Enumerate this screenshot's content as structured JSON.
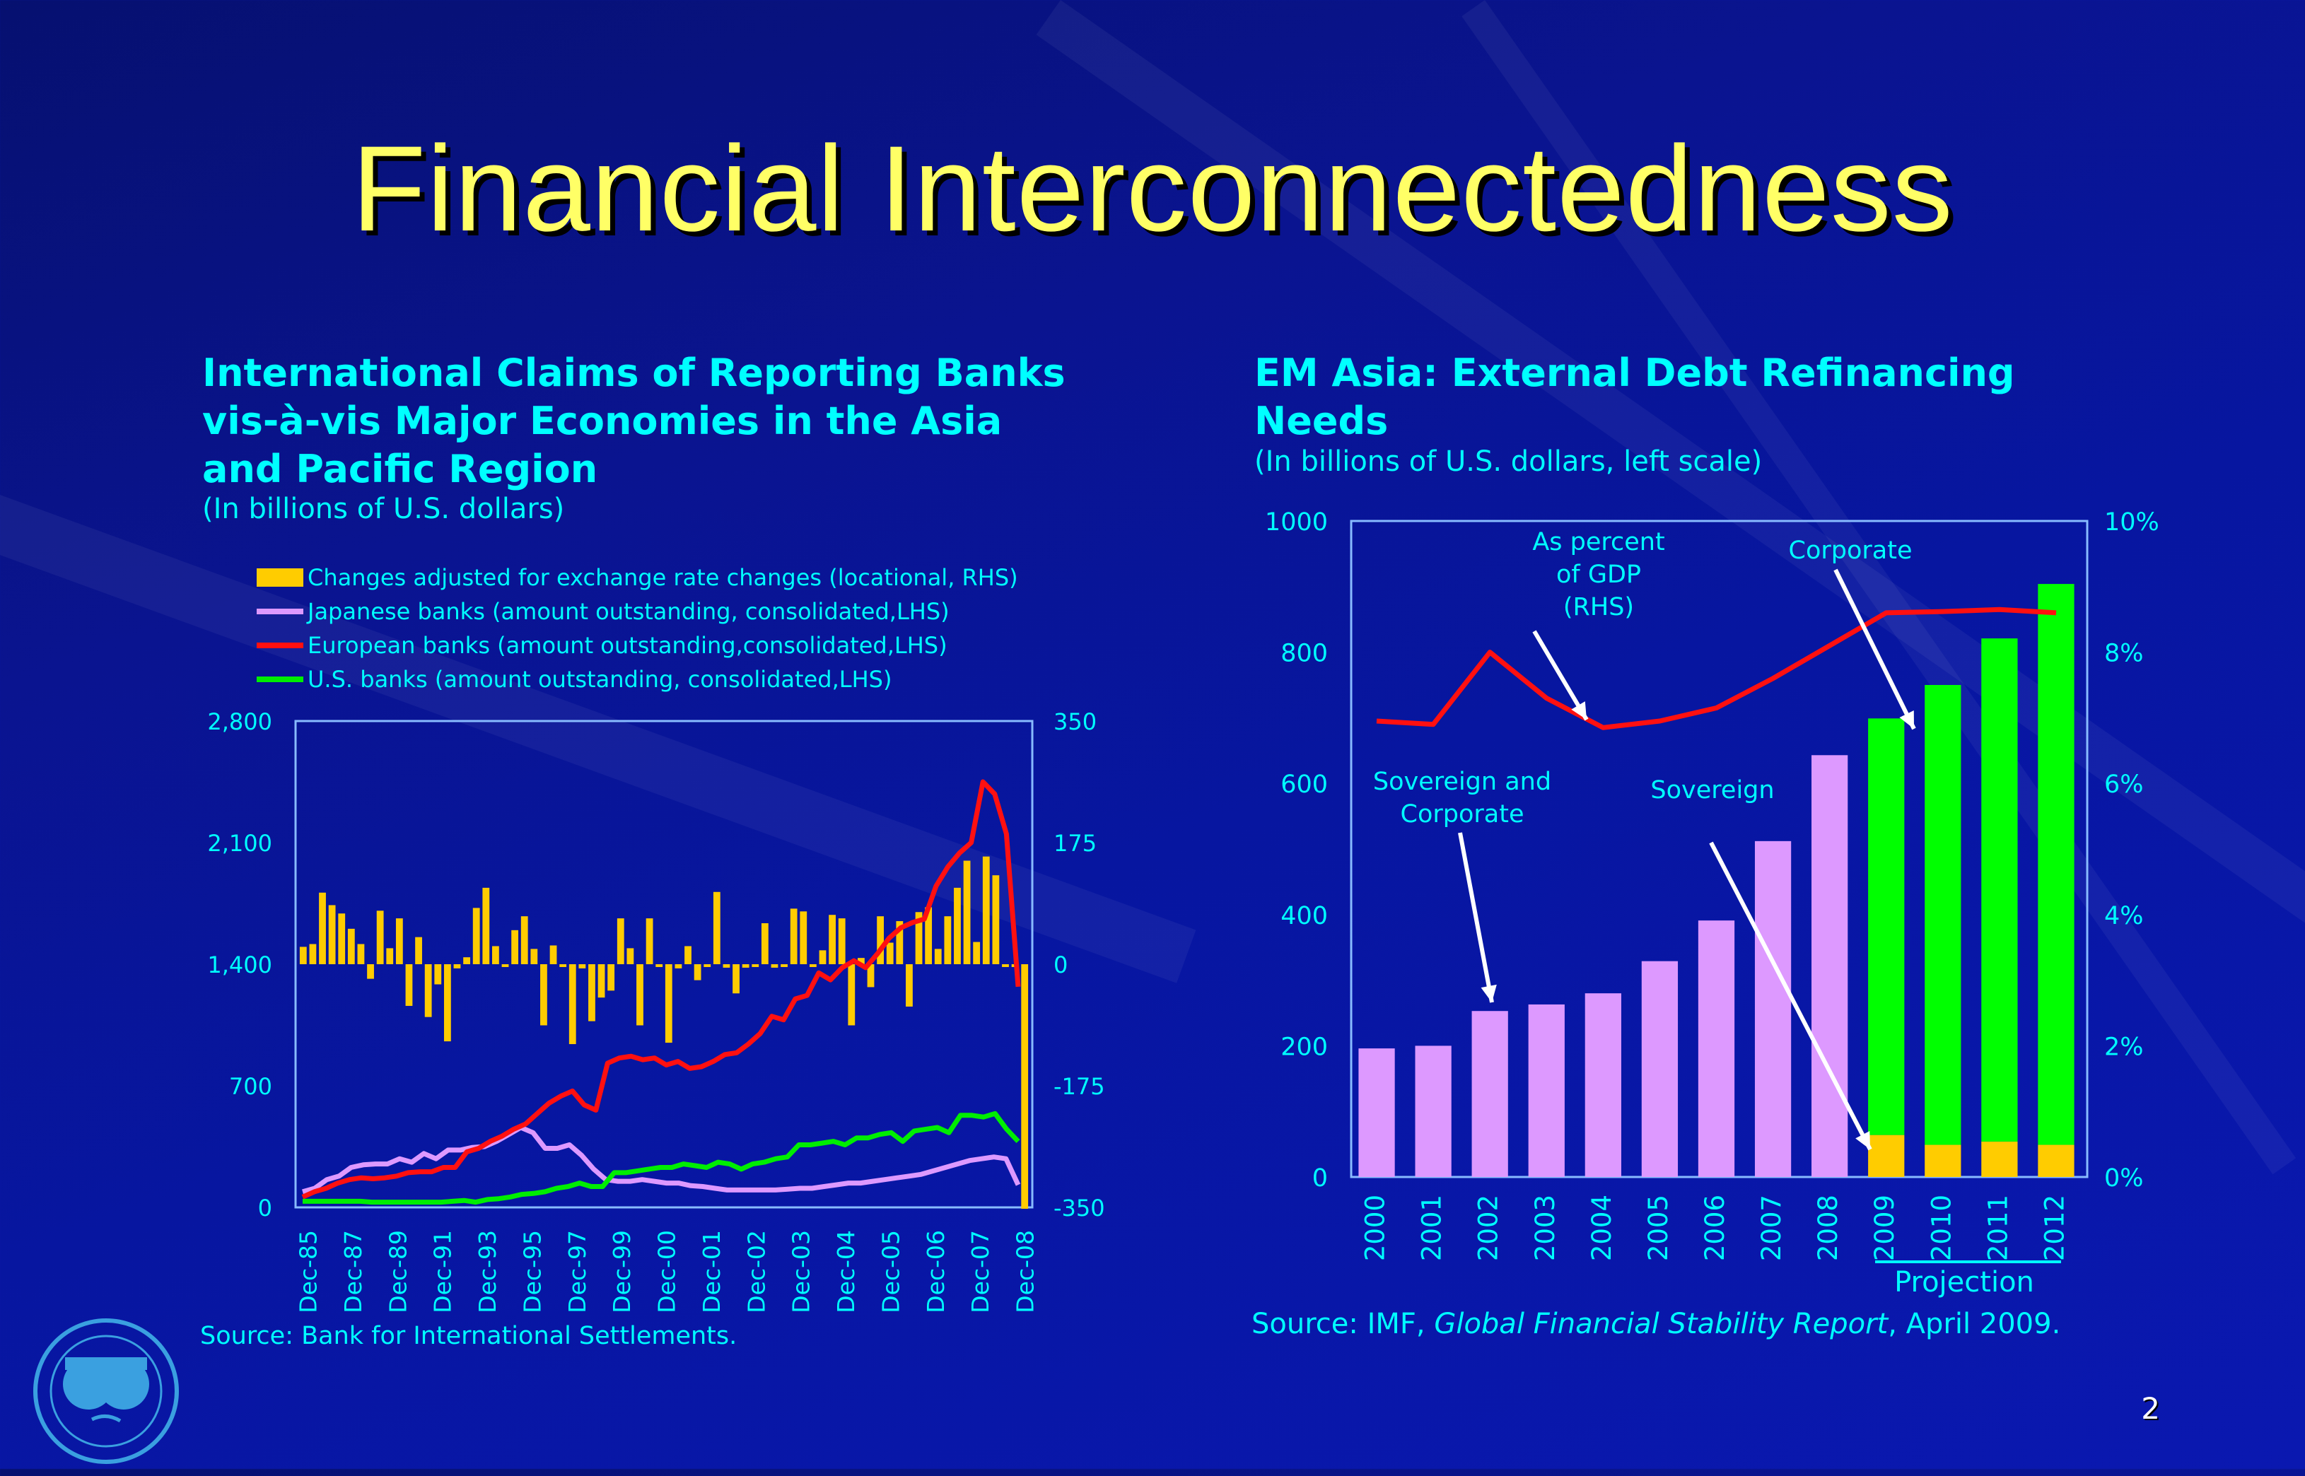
{
  "slide": {
    "title": "Financial Interconnectedness",
    "page_number": "2"
  },
  "left_panel": {
    "title_lines": [
      "International Claims of Reporting Banks",
      "vis-à-vis Major Economies in the Asia",
      "and Pacific Region"
    ],
    "subtitle": "(In billions of U.S. dollars)",
    "legend": [
      {
        "label": "Changes adjusted for exchange rate changes (locational, RHS)",
        "color": "#ffcc00",
        "kind": "box"
      },
      {
        "label": "Japanese banks (amount outstanding, consolidated,LHS)",
        "color": "#dd99ff",
        "kind": "line"
      },
      {
        "label": "European banks (amount outstanding,consolidated,LHS)",
        "color": "#ff1010",
        "kind": "line"
      },
      {
        "label": "U.S. banks (amount outstanding, consolidated,LHS)",
        "color": "#00ee00",
        "kind": "line"
      }
    ],
    "source": "Source: Bank for International Settlements."
  },
  "right_panel": {
    "title_lines": [
      "EM Asia: External Debt Refinancing",
      "Needs"
    ],
    "subtitle": "(In billions of U.S. dollars, left scale)",
    "annotations": {
      "gdp": [
        "As percent",
        "of GDP",
        "(RHS)"
      ],
      "corporate": "Corporate",
      "sov_corp": [
        "Sovereign and",
        "Corporate"
      ],
      "sovereign": "Sovereign",
      "projection": "Projection"
    },
    "source_prefix": "Source: IMF, ",
    "source_italic": "Global Financial Stability Report",
    "source_suffix": ", April 2009."
  },
  "chart_data": [
    {
      "type": "bar+line",
      "title": "International Claims of Reporting Banks vis-à-vis Major Economies in the Asia and Pacific Region",
      "subtitle": "(In billions of U.S. dollars)",
      "x_tick_labels": [
        "Dec-85",
        "Dec-87",
        "Dec-89",
        "Dec-91",
        "Dec-93",
        "Dec-95",
        "Dec-97",
        "Dec-99",
        "Dec-00",
        "Dec-01",
        "Dec-02",
        "Dec-03",
        "Dec-04",
        "Dec-05",
        "Dec-06",
        "Dec-07",
        "Dec-08"
      ],
      "y_left": {
        "ticks": [
          "0",
          "700",
          "1,400",
          "2,100",
          "2,800"
        ],
        "range": [
          0,
          2800
        ]
      },
      "y_right": {
        "ticks": [
          "-350",
          "-175",
          "0",
          "175",
          "350"
        ],
        "range": [
          -350,
          350
        ]
      },
      "series": [
        {
          "name": "Changes adjusted for exchange rate changes (locational, RHS)",
          "kind": "bar",
          "axis": "right",
          "color": "#ffcc00",
          "values": [
            25,
            29,
            103,
            85,
            73,
            51,
            29,
            -21,
            77,
            23,
            66,
            -60,
            39,
            -76,
            -29,
            -111,
            -6,
            10,
            81,
            110,
            26,
            -2,
            49,
            69,
            22,
            -88,
            27,
            -2,
            -115,
            -6,
            -82,
            -48,
            -38,
            66,
            23,
            -88,
            66,
            -2,
            -113,
            -6,
            26,
            -23,
            -4,
            104,
            -5,
            -42,
            -5,
            -1,
            59,
            -5,
            -1,
            80,
            76,
            -4,
            20,
            71,
            66,
            -88,
            9,
            -33,
            69,
            31,
            62,
            -61,
            75,
            82,
            22,
            69,
            110,
            149,
            32,
            155,
            128,
            -3,
            -3,
            -352
          ]
        },
        {
          "name": "Japanese banks (amount outstanding, consolidated, LHS)",
          "kind": "line",
          "axis": "left",
          "color": "#dd99ff",
          "values": [
            90,
            110,
            160,
            180,
            230,
            245,
            250,
            250,
            280,
            260,
            310,
            280,
            330,
            330,
            345,
            350,
            380,
            420,
            460,
            430,
            340,
            340,
            360,
            300,
            220,
            160,
            150,
            150,
            160,
            150,
            140,
            140,
            125,
            120,
            110,
            100,
            100,
            100,
            100,
            100,
            105,
            110,
            110,
            120,
            130,
            140,
            140,
            150,
            160,
            170,
            180,
            190,
            210,
            230,
            250,
            270,
            280,
            290,
            280,
            130
          ]
        },
        {
          "name": "European banks (amount outstanding, consolidated, LHS)",
          "kind": "line",
          "axis": "left",
          "color": "#ff1010",
          "values": [
            60,
            90,
            110,
            140,
            160,
            170,
            165,
            170,
            180,
            200,
            205,
            205,
            230,
            230,
            320,
            340,
            380,
            410,
            450,
            480,
            540,
            600,
            640,
            670,
            590,
            560,
            830,
            860,
            870,
            850,
            860,
            820,
            840,
            800,
            810,
            840,
            880,
            890,
            940,
            1000,
            1100,
            1080,
            1200,
            1220,
            1350,
            1310,
            1380,
            1420,
            1380,
            1460,
            1550,
            1610,
            1640,
            1660,
            1850,
            1960,
            2040,
            2100,
            2450,
            2380,
            2150,
            1270
          ]
        },
        {
          "name": "U.S. banks (amount outstanding, consolidated, LHS)",
          "kind": "line",
          "axis": "left",
          "color": "#00ee00",
          "values": [
            35,
            35,
            35,
            35,
            35,
            35,
            30,
            30,
            30,
            30,
            30,
            30,
            30,
            35,
            40,
            30,
            45,
            50,
            60,
            75,
            80,
            90,
            110,
            120,
            140,
            120,
            120,
            200,
            200,
            210,
            220,
            230,
            230,
            250,
            240,
            230,
            260,
            250,
            220,
            250,
            260,
            280,
            290,
            360,
            360,
            370,
            380,
            360,
            400,
            400,
            420,
            430,
            380,
            440,
            450,
            460,
            430,
            530,
            530,
            520,
            540,
            450,
            380
          ]
        }
      ]
    },
    {
      "type": "bar+line",
      "title": "EM Asia: External Debt Refinancing Needs",
      "subtitle": "(In billions of U.S. dollars, left scale)",
      "categories": [
        "2000",
        "2001",
        "2002",
        "2003",
        "2004",
        "2005",
        "2006",
        "2007",
        "2008",
        "2009",
        "2010",
        "2011",
        "2012"
      ],
      "projection_categories": [
        "2009",
        "2010",
        "2011",
        "2012"
      ],
      "y_left": {
        "ticks": [
          "0",
          "200",
          "400",
          "600",
          "800",
          "1000"
        ],
        "range": [
          0,
          1000
        ]
      },
      "y_right": {
        "ticks": [
          "0%",
          "2%",
          "4%",
          "6%",
          "8%",
          "10%"
        ],
        "range": [
          0,
          10
        ]
      },
      "series": [
        {
          "name": "Sovereign and Corporate",
          "kind": "bar",
          "axis": "left",
          "color": "#dd99ff",
          "values": [
            196,
            200,
            253,
            263,
            280,
            329,
            391,
            512,
            643,
            null,
            null,
            null,
            null
          ]
        },
        {
          "name": "Sovereign",
          "kind": "stacked-bar",
          "axis": "left",
          "color": "#ffcc00",
          "values": [
            null,
            null,
            null,
            null,
            null,
            null,
            null,
            null,
            null,
            64,
            49,
            54,
            49
          ]
        },
        {
          "name": "Corporate",
          "kind": "stacked-bar",
          "axis": "left",
          "color": "#00ff00",
          "values": [
            null,
            null,
            null,
            null,
            null,
            null,
            null,
            null,
            null,
            635,
            701,
            767,
            855
          ]
        },
        {
          "name": "As percent of GDP (RHS)",
          "kind": "line",
          "axis": "right",
          "color": "#ff1010",
          "values": [
            6.95,
            6.9,
            8.0,
            7.3,
            6.85,
            6.95,
            7.15,
            7.6,
            8.1,
            8.6,
            8.62,
            8.65,
            8.6
          ]
        }
      ]
    }
  ]
}
